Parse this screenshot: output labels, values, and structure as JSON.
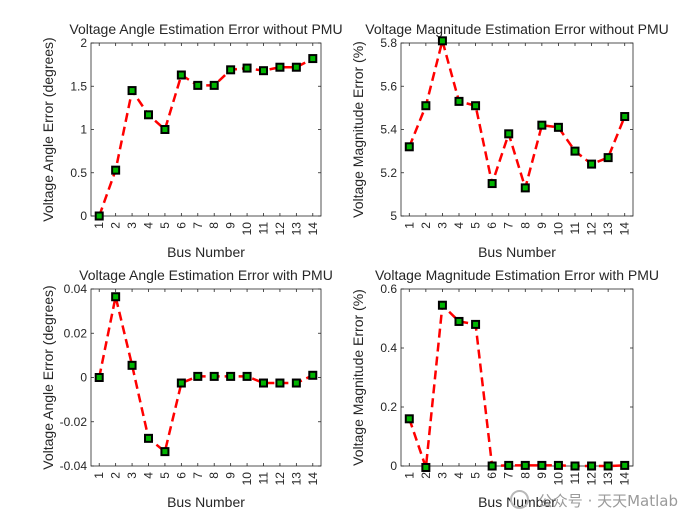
{
  "chart_data": [
    {
      "type": "line",
      "title": "Voltage Angle Estimation Error without PMU",
      "xlabel": "Bus Number",
      "ylabel": "Voltage Angle Error (degrees)",
      "categories": [
        "1",
        "2",
        "3",
        "4",
        "5",
        "6",
        "7",
        "8",
        "9",
        "10",
        "11",
        "12",
        "13",
        "14"
      ],
      "values": [
        0,
        0.53,
        1.45,
        1.17,
        1.0,
        1.63,
        1.51,
        1.51,
        1.69,
        1.71,
        1.68,
        1.72,
        1.72,
        1.82
      ],
      "ylim": [
        0,
        2
      ],
      "yticks": [
        0,
        0.5,
        1,
        1.5,
        2
      ],
      "ytick_labels": [
        "0",
        "0.5",
        "1",
        "1.5",
        "2"
      ]
    },
    {
      "type": "line",
      "title": "Voltage Magnitude Estimation Error without PMU",
      "xlabel": "Bus Number",
      "ylabel": "Voltage Magnitude Error (%)",
      "categories": [
        "1",
        "2",
        "3",
        "4",
        "5",
        "6",
        "7",
        "8",
        "9",
        "10",
        "11",
        "12",
        "13",
        "14"
      ],
      "values": [
        5.32,
        5.51,
        5.81,
        5.53,
        5.51,
        5.15,
        5.38,
        5.13,
        5.42,
        5.41,
        5.3,
        5.24,
        5.27,
        5.46
      ],
      "ylim": [
        5,
        5.8
      ],
      "yticks": [
        5,
        5.2,
        5.4,
        5.6,
        5.8
      ],
      "ytick_labels": [
        "5",
        "5.2",
        "5.4",
        "5.6",
        "5.8"
      ]
    },
    {
      "type": "line",
      "title": "Voltage Angle Estimation Error with PMU",
      "xlabel": "Bus Number",
      "ylabel": "Voltage Angle Error (degrees)",
      "categories": [
        "1",
        "2",
        "3",
        "4",
        "5",
        "6",
        "7",
        "8",
        "9",
        "10",
        "11",
        "12",
        "13",
        "14"
      ],
      "values": [
        0,
        0.0365,
        0.0055,
        -0.0275,
        -0.0335,
        -0.0025,
        0.0005,
        0.0005,
        0.0005,
        0.0005,
        -0.0025,
        -0.0025,
        -0.0025,
        0.001
      ],
      "ylim": [
        -0.04,
        0.04
      ],
      "yticks": [
        -0.04,
        -0.02,
        0,
        0.02,
        0.04
      ],
      "ytick_labels": [
        "-0.04",
        "-0.02",
        "0",
        "0.02",
        "0.04"
      ]
    },
    {
      "type": "line",
      "title": "Voltage Magnitude Estimation Error with PMU",
      "xlabel": "Bus Number",
      "ylabel": "Voltage Magnitude Error (%)",
      "categories": [
        "1",
        "2",
        "3",
        "4",
        "5",
        "6",
        "7",
        "8",
        "9",
        "10",
        "11",
        "12",
        "13",
        "14"
      ],
      "values": [
        0.16,
        -0.005,
        0.545,
        0.49,
        0.48,
        0.0,
        0.002,
        0.002,
        0.002,
        0.002,
        0.0,
        0.0,
        0.0,
        0.002
      ],
      "ylim": [
        0,
        0.6
      ],
      "yticks": [
        0,
        0.2,
        0.4,
        0.6
      ],
      "ytick_labels": [
        "0",
        "0.2",
        "0.4",
        "0.6"
      ]
    }
  ],
  "style": {
    "line_color": "#ff0000",
    "line_style": "dashed",
    "marker_edge_color": "#000000",
    "marker_face_color": "#00b400",
    "marker": "square",
    "axis_color": "#262626"
  },
  "watermark": {
    "account_text": "公众号 · 天天Matlab",
    "logo_icon": "wechat-logo-icon"
  }
}
